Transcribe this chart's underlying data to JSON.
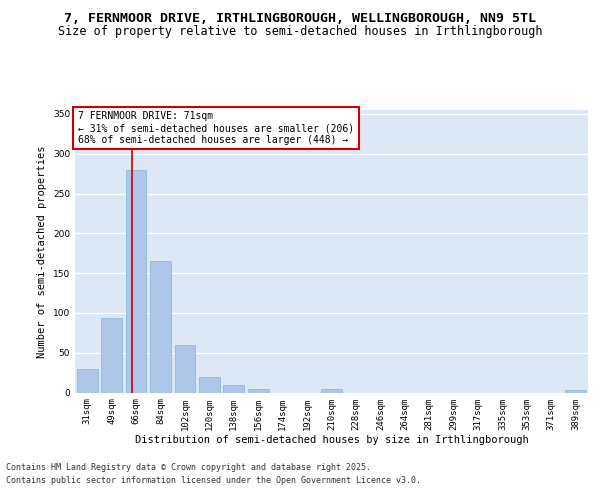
{
  "title_line1": "7, FERNMOOR DRIVE, IRTHLINGBOROUGH, WELLINGBOROUGH, NN9 5TL",
  "title_line2": "Size of property relative to semi-detached houses in Irthlingborough",
  "xlabel": "Distribution of semi-detached houses by size in Irthlingborough",
  "ylabel": "Number of semi-detached properties",
  "categories": [
    "31sqm",
    "49sqm",
    "66sqm",
    "84sqm",
    "102sqm",
    "120sqm",
    "138sqm",
    "156sqm",
    "174sqm",
    "192sqm",
    "210sqm",
    "228sqm",
    "246sqm",
    "264sqm",
    "281sqm",
    "299sqm",
    "317sqm",
    "335sqm",
    "353sqm",
    "371sqm",
    "389sqm"
  ],
  "values": [
    30,
    93,
    280,
    165,
    60,
    20,
    10,
    5,
    0,
    0,
    5,
    0,
    0,
    0,
    0,
    0,
    0,
    0,
    0,
    0,
    3
  ],
  "bar_color": "#aec6e8",
  "bar_edge_color": "#8ab4d8",
  "red_line_x": 1.85,
  "red_line_color": "#cc0000",
  "annotation_text_line1": "7 FERNMOOR DRIVE: 71sqm",
  "annotation_text_line2": "← 31% of semi-detached houses are smaller (206)",
  "annotation_text_line3": "68% of semi-detached houses are larger (448) →",
  "annotation_box_color": "#ffffff",
  "annotation_box_edge": "#cc0000",
  "plot_bg_color": "#dce8f5",
  "ylim": [
    0,
    355
  ],
  "yticks": [
    0,
    50,
    100,
    150,
    200,
    250,
    300,
    350
  ],
  "footer_line1": "Contains HM Land Registry data © Crown copyright and database right 2025.",
  "footer_line2": "Contains public sector information licensed under the Open Government Licence v3.0.",
  "title_fontsize": 9.5,
  "subtitle_fontsize": 8.5,
  "axis_label_fontsize": 7.5,
  "tick_fontsize": 6.5,
  "annotation_fontsize": 7,
  "footer_fontsize": 6
}
